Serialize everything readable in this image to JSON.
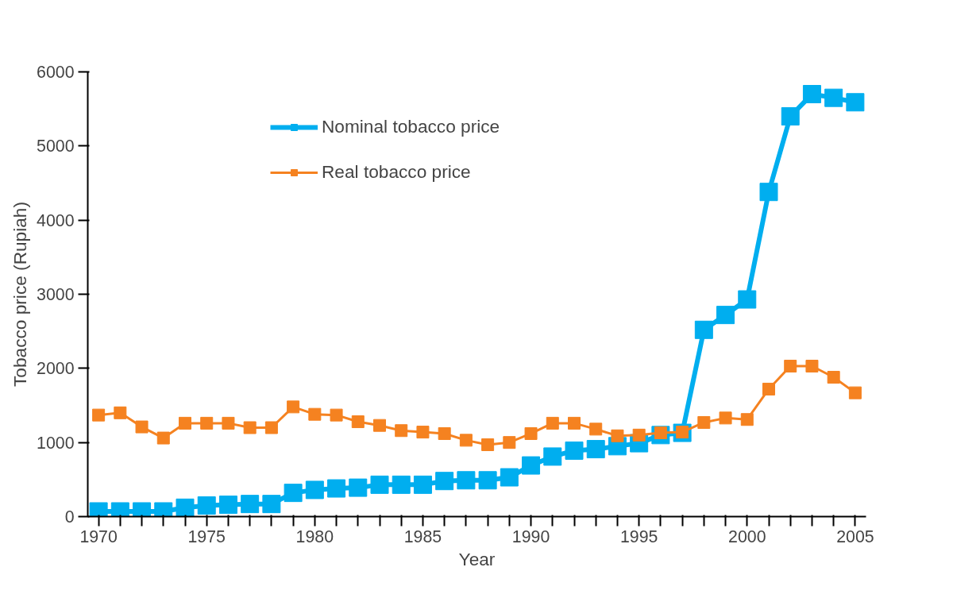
{
  "chart_data": {
    "type": "line",
    "xlabel": "Year",
    "ylabel": "Tobacco price (Rupiah)",
    "x": [
      1970,
      1971,
      1972,
      1973,
      1974,
      1975,
      1976,
      1977,
      1978,
      1979,
      1980,
      1981,
      1982,
      1983,
      1984,
      1985,
      1986,
      1987,
      1988,
      1989,
      1990,
      1991,
      1992,
      1993,
      1994,
      1995,
      1996,
      1997,
      1998,
      1999,
      2000,
      2001,
      2002,
      2003,
      2004,
      2005
    ],
    "series": [
      {
        "name": "Nominal tobacco price",
        "color": "#00aeef",
        "values": [
          70,
          70,
          70,
          70,
          120,
          150,
          160,
          170,
          170,
          320,
          360,
          380,
          390,
          430,
          430,
          430,
          480,
          490,
          490,
          530,
          690,
          810,
          890,
          910,
          950,
          990,
          1100,
          1130,
          2520,
          2720,
          2930,
          4380,
          5400,
          5700,
          5650,
          5590
        ]
      },
      {
        "name": "Real tobacco price",
        "color": "#f58220",
        "values": [
          1370,
          1400,
          1210,
          1060,
          1260,
          1260,
          1260,
          1200,
          1200,
          1480,
          1380,
          1370,
          1280,
          1230,
          1160,
          1140,
          1120,
          1030,
          970,
          1000,
          1120,
          1260,
          1260,
          1180,
          1090,
          1100,
          1130,
          1140,
          1270,
          1330,
          1310,
          1720,
          2030,
          2030,
          1880,
          1670
        ]
      }
    ],
    "xlim": [
      1969.5,
      2005.5
    ],
    "xticks": [
      1970,
      {
        "value": 1971,
        "label": null
      },
      {
        "value": 1972,
        "label": null
      },
      {
        "value": 1973,
        "label": null
      },
      {
        "value": 1974,
        "label": null
      },
      1975,
      {
        "value": 1976,
        "label": null
      },
      {
        "value": 1977,
        "label": null
      },
      {
        "value": 1978,
        "label": null
      },
      {
        "value": 1979,
        "label": null
      },
      1980,
      {
        "value": 1981,
        "label": null
      },
      {
        "value": 1982,
        "label": null
      },
      {
        "value": 1983,
        "label": null
      },
      {
        "value": 1984,
        "label": null
      },
      1985,
      {
        "value": 1986,
        "label": null
      },
      {
        "value": 1987,
        "label": null
      },
      {
        "value": 1988,
        "label": null
      },
      {
        "value": 1989,
        "label": null
      },
      1990,
      {
        "value": 1991,
        "label": null
      },
      {
        "value": 1992,
        "label": null
      },
      {
        "value": 1993,
        "label": null
      },
      {
        "value": 1994,
        "label": null
      },
      1995,
      {
        "value": 1996,
        "label": null
      },
      {
        "value": 1997,
        "label": null
      },
      {
        "value": 1998,
        "label": null
      },
      {
        "value": 1999,
        "label": null
      },
      2000,
      {
        "value": 2001,
        "label": null
      },
      {
        "value": 2002,
        "label": null
      },
      {
        "value": 2003,
        "label": null
      },
      {
        "value": 2004,
        "label": null
      },
      2005
    ],
    "ylim": [
      0,
      6000
    ],
    "yticks": [
      0,
      1000,
      2000,
      3000,
      4000,
      5000,
      6000
    ],
    "grid": false,
    "legend": "top",
    "marker": "square",
    "line_style": "solid"
  }
}
